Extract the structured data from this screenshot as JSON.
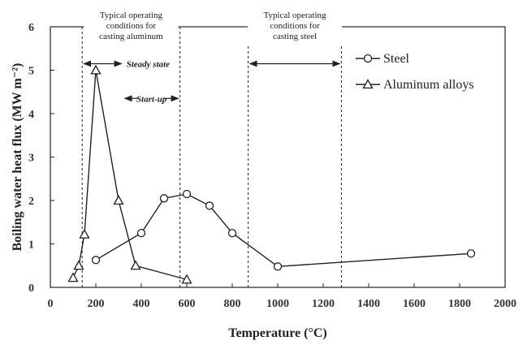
{
  "chart_data": {
    "type": "line",
    "xlabel": "Temperature (°C)",
    "ylabel": "Boiling water heat flux (MW m⁻²)",
    "xlim": [
      0,
      2000
    ],
    "ylim": [
      0,
      6
    ],
    "x_ticks": [
      0,
      200,
      400,
      600,
      800,
      1000,
      1200,
      1400,
      1600,
      1800,
      2000
    ],
    "y_ticks": [
      0,
      1,
      2,
      3,
      4,
      5,
      6
    ],
    "grid": false,
    "legend_position": "top-right",
    "series": [
      {
        "name": "Steel",
        "marker": "circle",
        "x": [
          200,
          400,
          500,
          600,
          700,
          800,
          1000,
          1850
        ],
        "y": [
          0.63,
          1.25,
          2.05,
          2.15,
          1.88,
          1.25,
          0.48,
          0.78
        ]
      },
      {
        "name": "Aluminum alloys",
        "marker": "triangle",
        "x": [
          100,
          125,
          150,
          200,
          300,
          375,
          600
        ],
        "y": [
          0.22,
          0.5,
          1.22,
          5.0,
          2.0,
          0.5,
          0.18
        ]
      }
    ],
    "annotations": [
      {
        "kind": "range",
        "label": "Typical operating conditions for casting aluminum",
        "x_range": [
          140,
          570
        ]
      },
      {
        "kind": "range",
        "label": "Typical operating conditions for casting steel",
        "x_range": [
          870,
          1280
        ]
      },
      {
        "kind": "arrow",
        "label": "Steady state",
        "x_range": [
          140,
          320
        ],
        "y": 5.15
      },
      {
        "kind": "arrow",
        "label": "Start-up",
        "x_range": [
          320,
          570
        ],
        "y": 4.35
      }
    ]
  }
}
